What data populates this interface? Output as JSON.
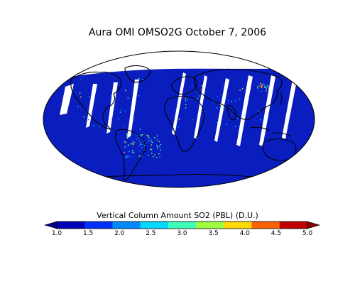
{
  "title": "Aura OMI OMSO2G October 7, 2006",
  "colorbar": {
    "label": "Vertical Column Amount SO2 (PBL) (D.U.)",
    "ticks": [
      "1.0",
      "1.5",
      "2.0",
      "2.5",
      "3.0",
      "3.5",
      "4.0",
      "4.5",
      "5.0"
    ],
    "colors": [
      "#0000b4",
      "#0030ff",
      "#0088ff",
      "#00d8ff",
      "#40ffb8",
      "#a0ff40",
      "#ffd800",
      "#ff6000",
      "#c00000"
    ],
    "under_color": "#00007f",
    "over_color": "#7f0000",
    "extend": "both"
  },
  "map": {
    "projection": "Mollweide",
    "ocean_fill": "#0a1ec0",
    "coastline_color": "#000000",
    "swath_gap_color": "#ffffff",
    "missing_data_region": "north-polar"
  }
}
